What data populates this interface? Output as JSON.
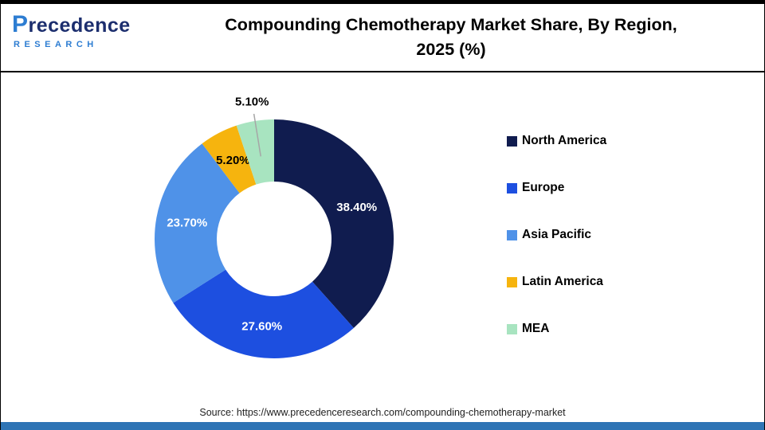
{
  "brand": {
    "name": "Precedence",
    "subtitle": "RESEARCH"
  },
  "header": {
    "title_line1": "Compounding Chemotherapy Market Share, By Region,",
    "title_line2": "2025 (%)"
  },
  "footer": {
    "source": "Source: https://www.precedenceresearch.com/compounding-chemotherapy-market"
  },
  "accent": {
    "bottom_bar_color": "#2E74B5",
    "callout_line_color": "#A6A6A6"
  },
  "chart_data": {
    "type": "pie",
    "subtype": "donut",
    "title": "Compounding Chemotherapy Market Share, By Region, 2025 (%)",
    "categories": [
      "North America",
      "Europe",
      "Asia Pacific",
      "Latin America",
      "MEA"
    ],
    "values": [
      38.4,
      27.6,
      23.7,
      5.2,
      5.1
    ],
    "value_labels": [
      "38.40%",
      "27.60%",
      "23.70%",
      "5.20%",
      "5.10%"
    ],
    "colors": [
      "#101C4F",
      "#1D4FE0",
      "#4F92E8",
      "#F6B40E",
      "#A8E4C0"
    ],
    "label_colors": [
      "#FFFFFF",
      "#FFFFFF",
      "#FFFFFF",
      "#000000",
      "#000000"
    ],
    "label_callout": [
      false,
      false,
      false,
      false,
      true
    ],
    "start_angle": -90,
    "direction": "clockwise",
    "inner_radius_pct": 48,
    "legend_position": "right"
  }
}
